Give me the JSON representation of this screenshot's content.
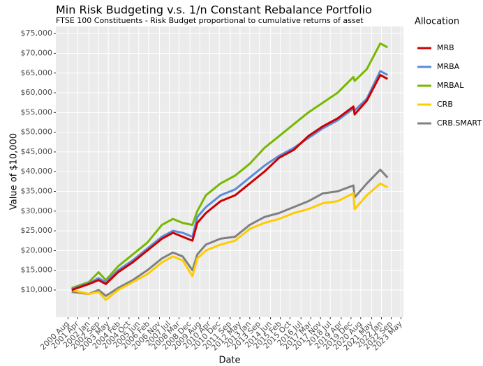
{
  "chart_data": {
    "type": "line",
    "title": "Min Risk Budgeting v.s. 1/n Constant Rebalance Portfolio",
    "subtitle": "FTSE 100 Constituents - Risk Budget proportional to cumulative returns of asset",
    "x_label": "Date",
    "y_label": "Value of $10,000",
    "legend_title": "Allocation",
    "legend": "right",
    "grid": true,
    "x": [
      "2000-11",
      "2002-01",
      "2002-09",
      "2003-03",
      "2004-01",
      "2005-01",
      "2006-01",
      "2007-01",
      "2007-10",
      "2008-06",
      "2009-02",
      "2009-06",
      "2010-01",
      "2011-01",
      "2012-01",
      "2013-01",
      "2014-01",
      "2015-01",
      "2016-01",
      "2017-01",
      "2018-01",
      "2019-01",
      "2020-02",
      "2020-03",
      "2021-01",
      "2021-12",
      "2022-06"
    ],
    "xlim": [
      "1999-10",
      "2023-07"
    ],
    "xticks": [
      {
        "value": "2000-08",
        "label": "2000 Aug"
      },
      {
        "value": "2001-04",
        "label": "2001 Apr"
      },
      {
        "value": "2002-01",
        "label": "2002 Jan"
      },
      {
        "value": "2002-09",
        "label": "2002 Sep"
      },
      {
        "value": "2003-05",
        "label": "2003 May"
      },
      {
        "value": "2004-02",
        "label": "2004 Feb"
      },
      {
        "value": "2004-10",
        "label": "2004 Oct"
      },
      {
        "value": "2005-06",
        "label": "2005 Jun"
      },
      {
        "value": "2006-02",
        "label": "2006 Feb"
      },
      {
        "value": "2006-11",
        "label": "2006 Nov"
      },
      {
        "value": "2007-07",
        "label": "2007 Jul"
      },
      {
        "value": "2008-03",
        "label": "2008 Mar"
      },
      {
        "value": "2008-12",
        "label": "2008 Dec"
      },
      {
        "value": "2009-08",
        "label": "2009 Aug"
      },
      {
        "value": "2010-04",
        "label": "2010 Apr"
      },
      {
        "value": "2010-12",
        "label": "2010 Dec"
      },
      {
        "value": "2011-09",
        "label": "2011 Sep"
      },
      {
        "value": "2012-05",
        "label": "2012 May"
      },
      {
        "value": "2013-01",
        "label": "2013 Jan"
      },
      {
        "value": "2013-09",
        "label": "2013 Sep"
      },
      {
        "value": "2014-06",
        "label": "2014 Jun"
      },
      {
        "value": "2015-02",
        "label": "2015 Feb"
      },
      {
        "value": "2015-10",
        "label": "2015 Oct"
      },
      {
        "value": "2016-07",
        "label": "2016 Jul"
      },
      {
        "value": "2017-03",
        "label": "2017 Mar"
      },
      {
        "value": "2017-11",
        "label": "2017 Nov"
      },
      {
        "value": "2018-07",
        "label": "2018 Jul"
      },
      {
        "value": "2019-04",
        "label": "2019 Apr"
      },
      {
        "value": "2019-12",
        "label": "2019 Dec"
      },
      {
        "value": "2020-08",
        "label": "2020 Aug"
      },
      {
        "value": "2021-05",
        "label": "2021 May"
      },
      {
        "value": "2022-01",
        "label": "2022 Jan"
      },
      {
        "value": "2022-09",
        "label": "2022 Sep"
      },
      {
        "value": "2023-05",
        "label": "2023 May"
      }
    ],
    "ylim": [
      3100,
      76800
    ],
    "yticks": [
      {
        "value": 10000,
        "label": "$10,000"
      },
      {
        "value": 15000,
        "label": "$15,000"
      },
      {
        "value": 20000,
        "label": "$20,000"
      },
      {
        "value": 25000,
        "label": "$25,000"
      },
      {
        "value": 30000,
        "label": "$30,000"
      },
      {
        "value": 35000,
        "label": "$35,000"
      },
      {
        "value": 40000,
        "label": "$40,000"
      },
      {
        "value": 45000,
        "label": "$45,000"
      },
      {
        "value": 50000,
        "label": "$50,000"
      },
      {
        "value": 55000,
        "label": "$55,000"
      },
      {
        "value": 60000,
        "label": "$60,000"
      },
      {
        "value": 65000,
        "label": "$65,000"
      },
      {
        "value": 70000,
        "label": "$70,000"
      },
      {
        "value": 75000,
        "label": "$75,000"
      }
    ],
    "series": [
      {
        "name": "MRB",
        "color": "#cc0000",
        "values": [
          10000,
          11500,
          12500,
          11500,
          14500,
          17000,
          20000,
          23000,
          24500,
          23500,
          22500,
          27000,
          29500,
          32500,
          34000,
          37000,
          40000,
          43500,
          45500,
          49000,
          51500,
          53500,
          56500,
          54500,
          58000,
          64500,
          63500
        ]
      },
      {
        "name": "MRBA",
        "color": "#5b8bd9",
        "values": [
          10200,
          11700,
          13000,
          12000,
          15000,
          17500,
          20500,
          23500,
          25000,
          24500,
          23500,
          28500,
          31000,
          34000,
          35500,
          38500,
          41500,
          44000,
          46000,
          48500,
          51000,
          53000,
          56000,
          55500,
          58500,
          65500,
          64500
        ]
      },
      {
        "name": "MRBAL",
        "color": "#77b800",
        "values": [
          10500,
          12000,
          14500,
          12500,
          16000,
          19000,
          22000,
          26500,
          28000,
          27000,
          26500,
          30000,
          34000,
          37000,
          39000,
          42000,
          46000,
          49000,
          52000,
          55000,
          57500,
          60000,
          64000,
          63000,
          66000,
          72500,
          71500
        ]
      },
      {
        "name": "CRB",
        "color": "#ffcc00",
        "values": [
          10000,
          9000,
          9500,
          7500,
          10000,
          12000,
          14000,
          17000,
          18500,
          17500,
          13500,
          18000,
          20000,
          21500,
          22500,
          25500,
          27000,
          28000,
          29500,
          30500,
          32000,
          32500,
          34500,
          30500,
          34000,
          37000,
          36000
        ]
      },
      {
        "name": "CRB.SMART",
        "color": "#808080",
        "values": [
          9500,
          9000,
          10000,
          8500,
          10500,
          12500,
          15000,
          18000,
          19500,
          18500,
          15000,
          19000,
          21500,
          23000,
          23500,
          26500,
          28500,
          29500,
          31000,
          32500,
          34500,
          35000,
          36500,
          33500,
          37000,
          40500,
          38500
        ]
      }
    ]
  }
}
